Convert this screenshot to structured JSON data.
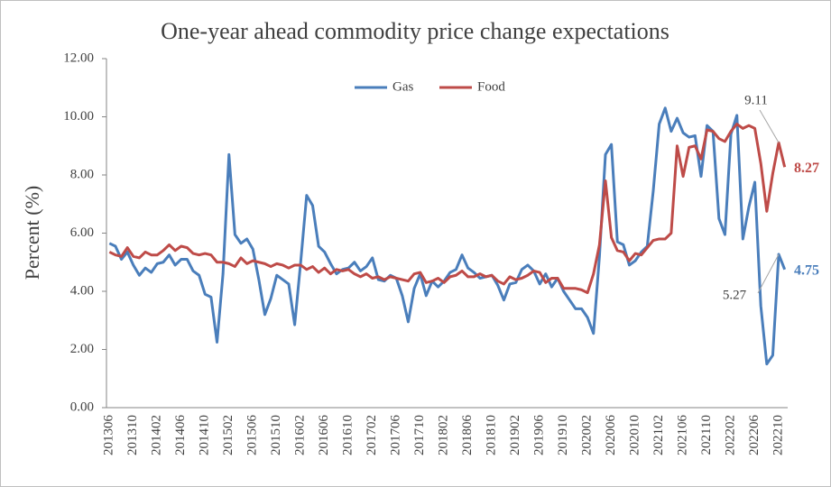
{
  "chart_data": {
    "type": "line",
    "title": "One-year ahead commodity price change expectations",
    "y_label": "Percent (%)",
    "categories": [
      "201306",
      null,
      null,
      null,
      "201310",
      null,
      null,
      null,
      "201402",
      null,
      null,
      null,
      "201406",
      null,
      null,
      null,
      "201410",
      null,
      null,
      null,
      "201502",
      null,
      null,
      null,
      "201506",
      null,
      null,
      null,
      "201510",
      null,
      null,
      null,
      "201602",
      null,
      null,
      null,
      "201606",
      null,
      null,
      null,
      "201610",
      null,
      null,
      null,
      "201702",
      null,
      null,
      null,
      "201706",
      null,
      null,
      null,
      "201710",
      null,
      null,
      null,
      "201802",
      null,
      null,
      null,
      "201806",
      null,
      null,
      null,
      "201810",
      null,
      null,
      null,
      "201902",
      null,
      null,
      null,
      "201906",
      null,
      null,
      null,
      "201910",
      null,
      null,
      null,
      "202002",
      null,
      null,
      null,
      "202006",
      null,
      null,
      null,
      "202010",
      null,
      null,
      null,
      "202102",
      null,
      null,
      null,
      "202106",
      null,
      null,
      null,
      "202110",
      null,
      null,
      null,
      "202202",
      null,
      null,
      null,
      "202206",
      null,
      null,
      null,
      "202210",
      null
    ],
    "series": [
      {
        "name": "Gas",
        "color": "#4a7ebb",
        "values": [
          5.65,
          5.55,
          5.1,
          5.35,
          4.9,
          4.55,
          4.8,
          4.65,
          4.95,
          5.0,
          5.25,
          4.9,
          5.1,
          5.1,
          4.7,
          4.55,
          3.9,
          3.8,
          2.25,
          4.6,
          8.7,
          5.95,
          5.65,
          5.8,
          5.45,
          4.4,
          3.2,
          3.75,
          4.55,
          4.4,
          4.25,
          2.85,
          5.0,
          7.3,
          6.95,
          5.55,
          5.35,
          4.95,
          4.6,
          4.75,
          4.8,
          5.0,
          4.7,
          4.85,
          5.15,
          4.4,
          4.35,
          4.55,
          4.45,
          3.85,
          2.95,
          4.1,
          4.6,
          3.85,
          4.35,
          4.15,
          4.35,
          4.65,
          4.75,
          5.25,
          4.8,
          4.65,
          4.45,
          4.5,
          4.55,
          4.2,
          3.7,
          4.25,
          4.3,
          4.75,
          4.9,
          4.7,
          4.25,
          4.6,
          4.15,
          4.45,
          4.0,
          3.7,
          3.4,
          3.4,
          3.1,
          2.55,
          5.2,
          8.7,
          9.05,
          5.7,
          5.6,
          4.9,
          5.05,
          5.35,
          5.55,
          7.45,
          9.75,
          10.3,
          9.5,
          9.95,
          9.45,
          9.3,
          9.35,
          7.95,
          9.7,
          9.5,
          6.5,
          5.95,
          9.4,
          10.05,
          5.8,
          6.9,
          7.75,
          3.5,
          1.5,
          1.8,
          5.27,
          4.75
        ]
      },
      {
        "name": "Food",
        "color": "#be4b48",
        "values": [
          5.35,
          5.25,
          5.2,
          5.5,
          5.2,
          5.15,
          5.35,
          5.25,
          5.25,
          5.4,
          5.6,
          5.4,
          5.55,
          5.5,
          5.3,
          5.25,
          5.3,
          5.25,
          5.0,
          5.0,
          4.95,
          4.85,
          5.15,
          4.95,
          5.05,
          5.0,
          4.95,
          4.85,
          4.95,
          4.9,
          4.8,
          4.9,
          4.9,
          4.75,
          4.85,
          4.65,
          4.8,
          4.6,
          4.75,
          4.7,
          4.75,
          4.6,
          4.5,
          4.6,
          4.45,
          4.5,
          4.4,
          4.5,
          4.45,
          4.4,
          4.35,
          4.6,
          4.65,
          4.3,
          4.35,
          4.45,
          4.3,
          4.5,
          4.55,
          4.7,
          4.5,
          4.5,
          4.6,
          4.5,
          4.55,
          4.35,
          4.25,
          4.5,
          4.4,
          4.45,
          4.55,
          4.7,
          4.65,
          4.3,
          4.45,
          4.45,
          4.1,
          4.1,
          4.1,
          4.05,
          3.95,
          4.6,
          5.6,
          7.8,
          5.85,
          5.4,
          5.35,
          5.05,
          5.3,
          5.25,
          5.5,
          5.75,
          5.8,
          5.8,
          6.0,
          9.0,
          7.95,
          8.95,
          9.0,
          8.55,
          9.55,
          9.5,
          9.25,
          9.15,
          9.5,
          9.75,
          9.6,
          9.7,
          9.6,
          8.4,
          6.75,
          8.05,
          9.11,
          8.27
        ]
      }
    ],
    "ylim": [
      0,
      12
    ],
    "yticks": [
      {
        "value": 0,
        "label": "0.00"
      },
      {
        "value": 2,
        "label": "2.00"
      },
      {
        "value": 4,
        "label": "4.00"
      },
      {
        "value": 6,
        "label": "6.00"
      },
      {
        "value": 8,
        "label": "8.00"
      },
      {
        "value": 10,
        "label": "10.00"
      },
      {
        "value": 12,
        "label": "12.00"
      }
    ],
    "legend": "top",
    "grid": false
  }
}
